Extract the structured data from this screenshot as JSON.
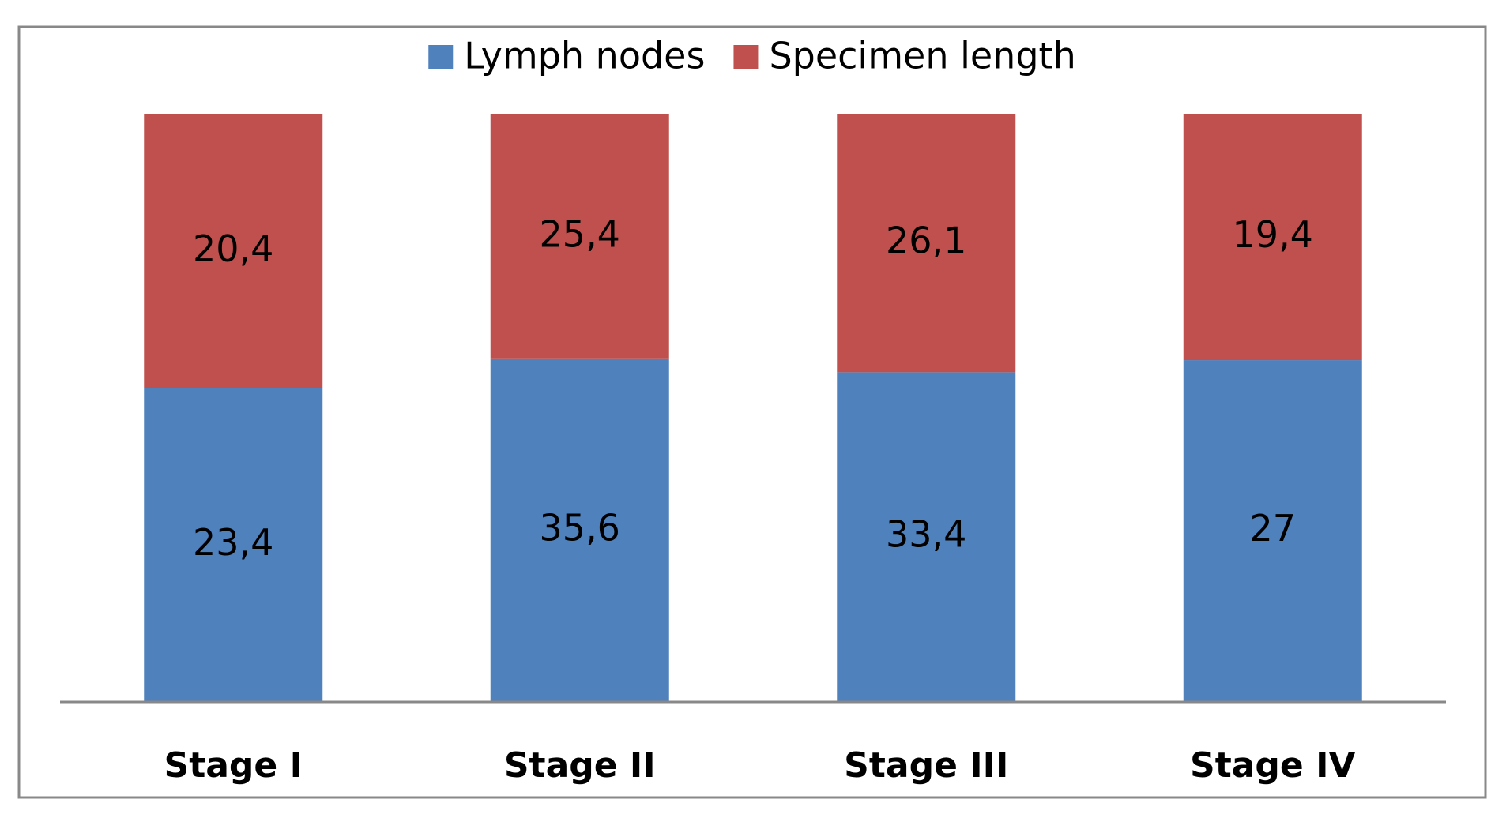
{
  "chart_data": {
    "type": "bar",
    "stack": "percent",
    "categories": [
      "Stage I",
      "Stage II",
      "Stage III",
      "Stage IV"
    ],
    "series": [
      {
        "name": "Lymph nodes",
        "color": "#4f81bd",
        "values": [
          23.4,
          35.6,
          33.4,
          27
        ],
        "value_labels": [
          "23,4",
          "35,6",
          "33,4",
          "27"
        ]
      },
      {
        "name": "Specimen length",
        "color": "#c0504d",
        "values": [
          20.4,
          25.4,
          26.1,
          19.4
        ],
        "value_labels": [
          "20,4",
          "25,4",
          "26,1",
          "19,4"
        ]
      }
    ],
    "legend": "top"
  }
}
